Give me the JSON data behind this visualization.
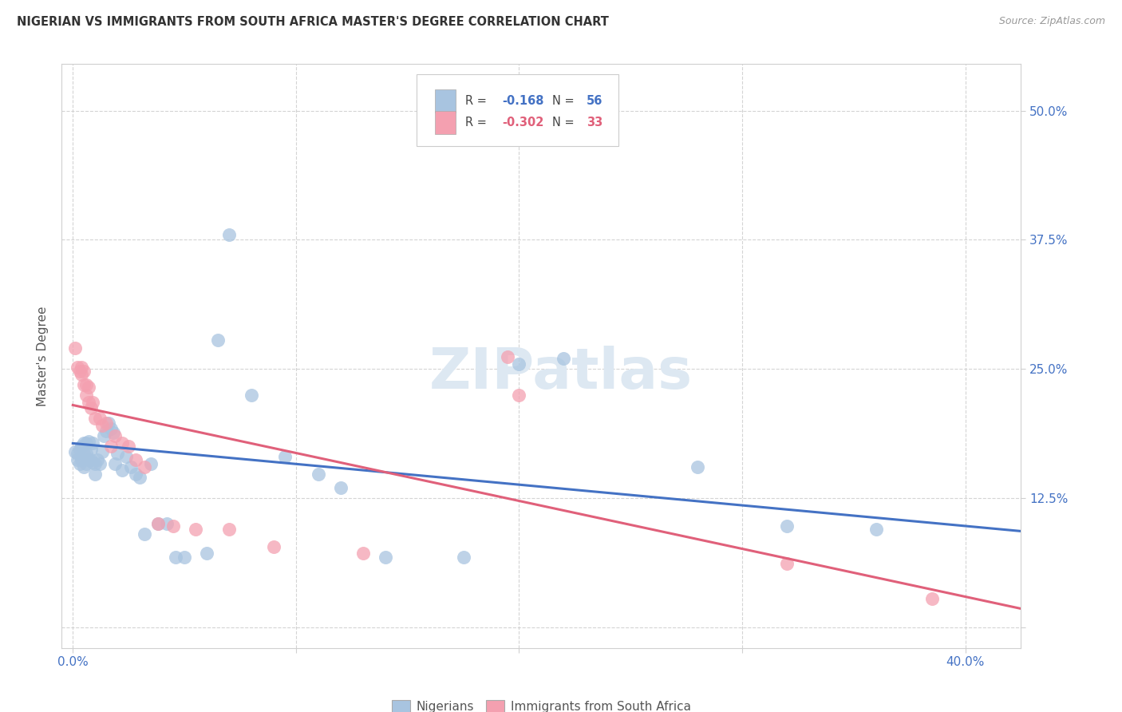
{
  "title": "NIGERIAN VS IMMIGRANTS FROM SOUTH AFRICA MASTER'S DEGREE CORRELATION CHART",
  "source": "Source: ZipAtlas.com",
  "ylabel": "Master's Degree",
  "xlim": [
    -0.005,
    0.425
  ],
  "ylim": [
    -0.02,
    0.545
  ],
  "x_ticks": [
    0.0,
    0.1,
    0.2,
    0.3,
    0.4
  ],
  "x_tick_labels_show": [
    "0.0%",
    "",
    "",
    "",
    "40.0%"
  ],
  "y_ticks": [
    0.0,
    0.125,
    0.25,
    0.375,
    0.5
  ],
  "y_tick_labels_right": [
    "",
    "12.5%",
    "25.0%",
    "37.5%",
    "50.0%"
  ],
  "legend1": "Nigerians",
  "legend2": "Immigrants from South Africa",
  "blue_scatter": "#a8c4e0",
  "pink_scatter": "#f4a0b0",
  "blue_line": "#4472c4",
  "pink_line": "#e0607a",
  "axis_tick_color": "#4472c4",
  "title_color": "#333333",
  "source_color": "#999999",
  "ylabel_color": "#555555",
  "grid_color": "#d0d0d0",
  "watermark_text": "ZIPatlas",
  "watermark_color": "#dde8f2",
  "nigerians_x": [
    0.001,
    0.002,
    0.002,
    0.003,
    0.003,
    0.004,
    0.004,
    0.005,
    0.005,
    0.005,
    0.006,
    0.006,
    0.006,
    0.007,
    0.007,
    0.008,
    0.008,
    0.009,
    0.009,
    0.01,
    0.01,
    0.011,
    0.012,
    0.013,
    0.014,
    0.015,
    0.016,
    0.017,
    0.018,
    0.019,
    0.02,
    0.022,
    0.024,
    0.026,
    0.028,
    0.03,
    0.032,
    0.035,
    0.038,
    0.042,
    0.046,
    0.05,
    0.06,
    0.065,
    0.07,
    0.08,
    0.095,
    0.11,
    0.14,
    0.175,
    0.22,
    0.28,
    0.32,
    0.36,
    0.2,
    0.12
  ],
  "nigerians_y": [
    0.17,
    0.168,
    0.162,
    0.172,
    0.158,
    0.175,
    0.162,
    0.178,
    0.168,
    0.155,
    0.178,
    0.168,
    0.158,
    0.18,
    0.162,
    0.172,
    0.162,
    0.178,
    0.16,
    0.148,
    0.158,
    0.162,
    0.158,
    0.17,
    0.185,
    0.19,
    0.198,
    0.192,
    0.188,
    0.158,
    0.168,
    0.152,
    0.165,
    0.155,
    0.148,
    0.145,
    0.09,
    0.158,
    0.1,
    0.1,
    0.068,
    0.068,
    0.072,
    0.278,
    0.38,
    0.225,
    0.165,
    0.148,
    0.068,
    0.068,
    0.26,
    0.155,
    0.098,
    0.095,
    0.255,
    0.135
  ],
  "immigrants_x": [
    0.001,
    0.002,
    0.003,
    0.004,
    0.004,
    0.005,
    0.005,
    0.006,
    0.006,
    0.007,
    0.007,
    0.008,
    0.009,
    0.01,
    0.012,
    0.013,
    0.015,
    0.017,
    0.019,
    0.022,
    0.025,
    0.028,
    0.032,
    0.038,
    0.045,
    0.055,
    0.07,
    0.09,
    0.13,
    0.195,
    0.32,
    0.385,
    0.2
  ],
  "immigrants_y": [
    0.27,
    0.252,
    0.248,
    0.252,
    0.245,
    0.248,
    0.235,
    0.235,
    0.225,
    0.232,
    0.218,
    0.212,
    0.218,
    0.202,
    0.202,
    0.195,
    0.198,
    0.175,
    0.185,
    0.178,
    0.175,
    0.162,
    0.155,
    0.1,
    0.098,
    0.095,
    0.095,
    0.078,
    0.072,
    0.262,
    0.062,
    0.028,
    0.225
  ],
  "blue_trend_x": [
    0.0,
    0.425
  ],
  "blue_trend_y": [
    0.178,
    0.093
  ],
  "pink_trend_x": [
    0.0,
    0.425
  ],
  "pink_trend_y": [
    0.215,
    0.018
  ]
}
